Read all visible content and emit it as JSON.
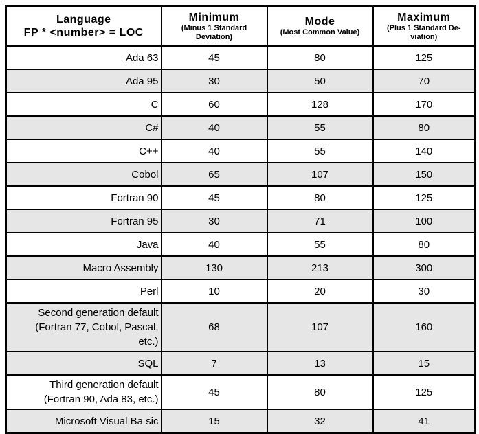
{
  "table": {
    "header": {
      "language": {
        "title": "Language",
        "subtitle": "FP * <number> = LOC"
      },
      "columns": [
        {
          "title": "Minimum",
          "subtitle": "(Minus 1 Standard Deviation)"
        },
        {
          "title": "Mode",
          "subtitle": "(Most Common Value)"
        },
        {
          "title": "Maximum",
          "subtitle": "(Plus 1 Standard De-viation)"
        }
      ]
    },
    "rows": [
      {
        "language": "Ada 63",
        "minimum": "45",
        "mode": "80",
        "maximum": "125",
        "shaded": false
      },
      {
        "language": "Ada 95",
        "minimum": "30",
        "mode": "50",
        "maximum": "70",
        "shaded": true
      },
      {
        "language": "C",
        "minimum": "60",
        "mode": "128",
        "maximum": "170",
        "shaded": false
      },
      {
        "language": "C#",
        "minimum": "40",
        "mode": "55",
        "maximum": "80",
        "shaded": true
      },
      {
        "language": "C++",
        "minimum": "40",
        "mode": "55",
        "maximum": "140",
        "shaded": false
      },
      {
        "language": "Cobol",
        "minimum": "65",
        "mode": "107",
        "maximum": "150",
        "shaded": true
      },
      {
        "language": "Fortran 90",
        "minimum": "45",
        "mode": "80",
        "maximum": "125",
        "shaded": false
      },
      {
        "language": "Fortran 95",
        "minimum": "30",
        "mode": "71",
        "maximum": "100",
        "shaded": true
      },
      {
        "language": "Java",
        "minimum": "40",
        "mode": "55",
        "maximum": "80",
        "shaded": false
      },
      {
        "language": "Macro Assembly",
        "minimum": "130",
        "mode": "213",
        "maximum": "300",
        "shaded": true
      },
      {
        "language": "Perl",
        "minimum": "10",
        "mode": "20",
        "maximum": "30",
        "shaded": false
      },
      {
        "language": "Second generation default (Fortran 77, Cobol, Pascal, etc.)",
        "minimum": "68",
        "mode": "107",
        "maximum": "160",
        "shaded": true
      },
      {
        "language": "SQL",
        "minimum": "7",
        "mode": "13",
        "maximum": "15",
        "shaded": true
      },
      {
        "language": "Third generation default (Fortran 90, Ada 83, etc.)",
        "minimum": "45",
        "mode": "80",
        "maximum": "125",
        "shaded": false
      },
      {
        "language": "Microsoft Visual Ba sic",
        "minimum": "15",
        "mode": "32",
        "maximum": "41",
        "shaded": true
      }
    ]
  },
  "colors": {
    "row_shade": "#e6e6e6",
    "border": "#000000",
    "text": "#000000",
    "background": "#ffffff"
  }
}
